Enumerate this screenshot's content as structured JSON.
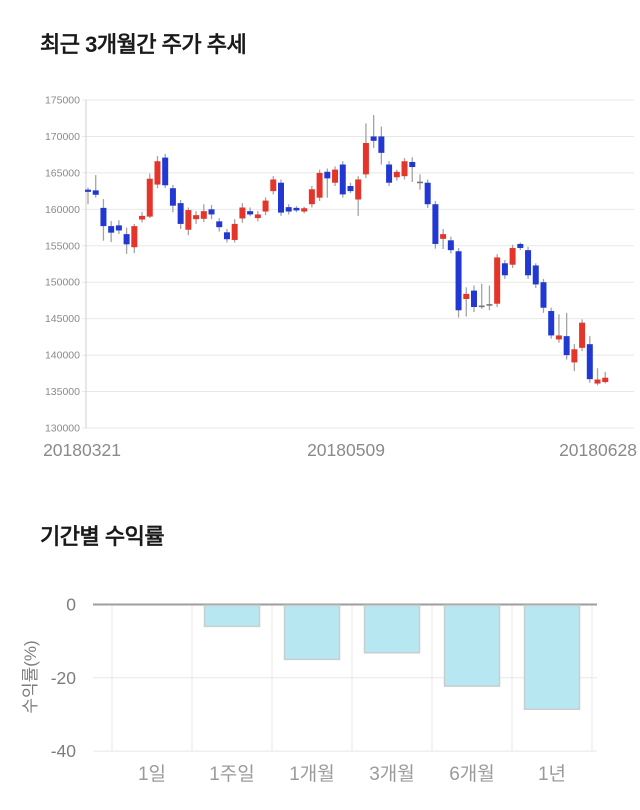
{
  "page": {
    "price_section_title": "최근 3개월간 주가 추세",
    "returns_section_title": "기간별 수익률"
  },
  "chart_data": [
    {
      "type": "candlestick",
      "title": "최근 3개월간 주가 추세",
      "ylabel": "",
      "xlabel": "",
      "ylim": [
        130000,
        175000
      ],
      "y_ticks": [
        130000,
        135000,
        140000,
        145000,
        150000,
        155000,
        160000,
        165000,
        170000,
        175000
      ],
      "x_axis_labels": [
        "20180321",
        "20180509",
        "20180628"
      ],
      "grid": true,
      "up_color": "#e5352b",
      "down_color": "#2139d2",
      "doji_color": "#777777",
      "wick_color": "#a3a3a3",
      "candles_ohlc": [
        [
          162700,
          163000,
          160700,
          162400
        ],
        [
          162600,
          164700,
          161600,
          162000
        ],
        [
          160200,
          161400,
          155700,
          157700
        ],
        [
          157700,
          158400,
          155500,
          156800
        ],
        [
          157800,
          158500,
          156600,
          157100
        ],
        [
          156600,
          157500,
          153900,
          155200
        ],
        [
          154800,
          158000,
          154000,
          157700
        ],
        [
          158600,
          159600,
          158200,
          159100
        ],
        [
          159000,
          164900,
          158800,
          164200
        ],
        [
          163400,
          167300,
          162900,
          166600
        ],
        [
          167100,
          167600,
          162900,
          163300
        ],
        [
          162900,
          163350,
          159600,
          160500
        ],
        [
          160850,
          161300,
          157300,
          158000
        ],
        [
          157200,
          160250,
          156450,
          159900
        ],
        [
          158650,
          159750,
          158000,
          159200
        ],
        [
          158700,
          160700,
          158250,
          159750
        ],
        [
          160000,
          160600,
          158650,
          159300
        ],
        [
          158350,
          158800,
          156950,
          157550
        ],
        [
          156850,
          157300,
          155450,
          155900
        ],
        [
          155800,
          158650,
          155450,
          158000
        ],
        [
          158750,
          160850,
          158150,
          160250
        ],
        [
          159750,
          160250,
          159050,
          159300
        ],
        [
          158800,
          159750,
          158350,
          159300
        ],
        [
          159700,
          161650,
          159200,
          161200
        ],
        [
          162500,
          164550,
          162050,
          164100
        ],
        [
          163650,
          164100,
          159100,
          159550
        ],
        [
          160300,
          160700,
          159300,
          159700
        ],
        [
          160200,
          160450,
          159600,
          159850
        ],
        [
          159700,
          160350,
          159450,
          160150
        ],
        [
          160700,
          163200,
          160250,
          162750
        ],
        [
          161600,
          165450,
          161150,
          165000
        ],
        [
          165150,
          165600,
          161600,
          164250
        ],
        [
          163650,
          165900,
          163200,
          165450
        ],
        [
          166150,
          166600,
          161600,
          162050
        ],
        [
          163200,
          163650,
          162250,
          162500
        ],
        [
          161350,
          164550,
          159100,
          164100
        ],
        [
          164800,
          171800,
          164300,
          169100
        ],
        [
          170000,
          172950,
          168400,
          169400
        ],
        [
          170000,
          171350,
          166150,
          167750
        ],
        [
          166150,
          166600,
          163200,
          163650
        ],
        [
          164400,
          165450,
          163950,
          165150
        ],
        [
          164550,
          167050,
          164100,
          166600
        ],
        [
          166500,
          167150,
          163750,
          165800
        ],
        [
          163800,
          164800,
          162700,
          163800
        ],
        [
          163650,
          164100,
          160200,
          160700
        ],
        [
          160700,
          161150,
          154600,
          155250
        ],
        [
          155950,
          157300,
          154550,
          156600
        ],
        [
          155750,
          156250,
          153950,
          154400
        ],
        [
          154250,
          154700,
          145150,
          146150
        ],
        [
          147700,
          149300,
          145300,
          148400
        ],
        [
          148850,
          149550,
          145900,
          146600
        ],
        [
          146800,
          149800,
          146350,
          146800
        ],
        [
          147000,
          149550,
          146150,
          147000
        ],
        [
          147050,
          153850,
          146600,
          153400
        ],
        [
          152600,
          153050,
          150450,
          150950
        ],
        [
          152400,
          155150,
          151950,
          154700
        ],
        [
          155250,
          155450,
          154400,
          154700
        ],
        [
          154400,
          154850,
          150450,
          150950
        ],
        [
          152300,
          152600,
          149200,
          149700
        ],
        [
          150000,
          150450,
          145800,
          146500
        ],
        [
          146050,
          146500,
          142250,
          142700
        ],
        [
          142150,
          145600,
          141700,
          142700
        ],
        [
          142600,
          145800,
          139400,
          140000
        ],
        [
          139000,
          141500,
          137800,
          140800
        ],
        [
          141000,
          144900,
          140550,
          144450
        ],
        [
          141500,
          142600,
          136200,
          136700
        ],
        [
          136100,
          138200,
          135850,
          136650
        ],
        [
          136300,
          137700,
          136100,
          136900
        ]
      ]
    },
    {
      "type": "bar",
      "title": "기간별 수익률",
      "categories": [
        "1일",
        "1주일",
        "1개월",
        "3개월",
        "6개월",
        "1년"
      ],
      "values": [
        0,
        -5.7,
        -14.7,
        -12.9,
        -22.0,
        -28.3
      ],
      "ylabel": "수익률(%)",
      "xlabel": "",
      "ylim": [
        -40,
        0
      ],
      "y_ticks": [
        0,
        -20,
        -40
      ],
      "grid": true,
      "legend": "none",
      "bar_color": "#b7e7f1",
      "bar_border_color": "#c9ced1"
    }
  ],
  "style": {
    "grid_color": "#e8e8e8",
    "axis_color": "#cfcfcf",
    "zero_line_color": "#9e9e9e",
    "price_tick_color": "#8a8a8a",
    "date_label_color": "#8a8a8a",
    "returns_tick_color": "#7d7d7d",
    "category_label_color": "#9b9b9b"
  }
}
